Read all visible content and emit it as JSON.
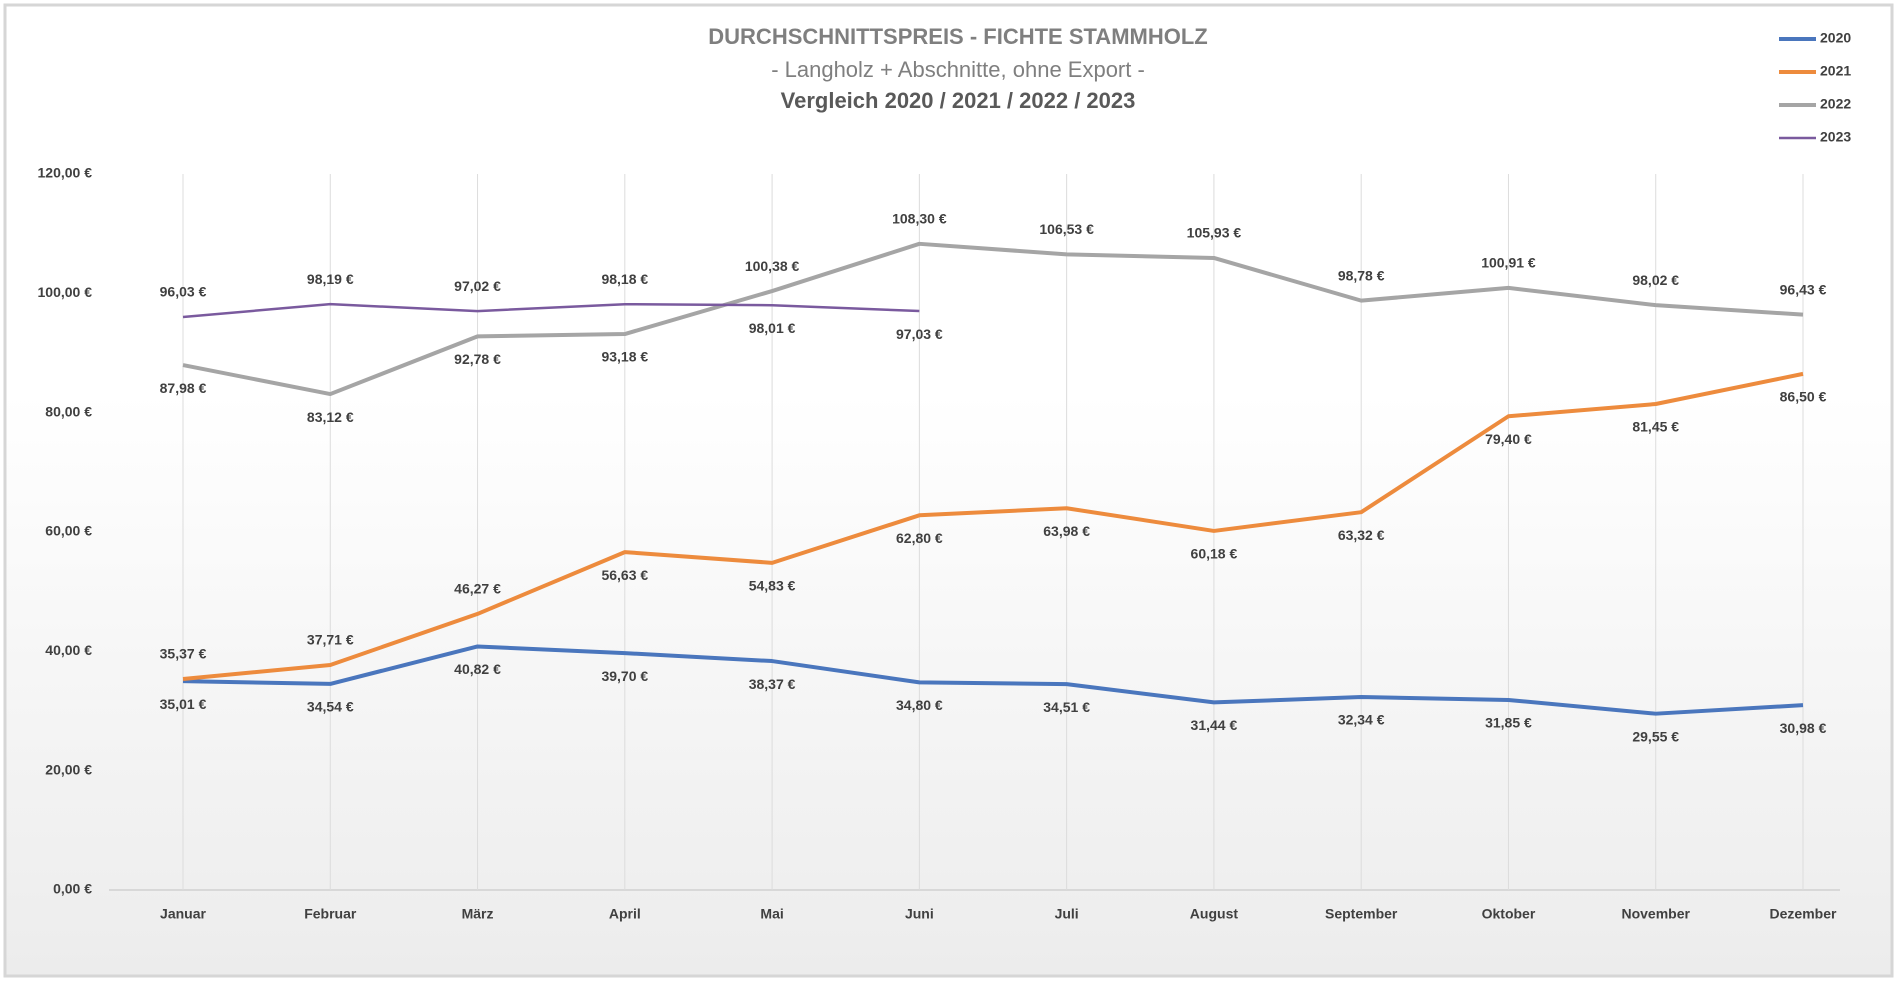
{
  "chart_data": {
    "type": "line",
    "title": "DURCHSCHNITTSPREIS - FICHTE STAMMHOLZ",
    "subtitle": "- Langholz + Abschnitte, ohne Export -",
    "subtitle2": "Vergleich 2020 / 2021 / 2022 / 2023",
    "categories": [
      "Januar",
      "Februar",
      "März",
      "April",
      "Mai",
      "Juni",
      "Juli",
      "August",
      "September",
      "Oktober",
      "November",
      "Dezember"
    ],
    "ylim": [
      0,
      120
    ],
    "yticks": [
      {
        "value": 0,
        "label": "0,00 €"
      },
      {
        "value": 20,
        "label": "20,00 €"
      },
      {
        "value": 40,
        "label": "40,00 €"
      },
      {
        "value": 60,
        "label": "60,00 €"
      },
      {
        "value": 80,
        "label": "80,00 €"
      },
      {
        "value": 100,
        "label": "100,00 €"
      },
      {
        "value": 120,
        "label": "120,00 €"
      }
    ],
    "grid": true,
    "legend": "top-right",
    "series": [
      {
        "name": "2020",
        "color": "#4a76bd",
        "values": [
          35.01,
          34.54,
          40.82,
          39.7,
          38.37,
          34.8,
          34.51,
          31.44,
          32.34,
          31.85,
          29.55,
          30.98
        ],
        "value_labels": [
          "35,01 €",
          "34,54 €",
          "40,82 €",
          "39,70 €",
          "38,37 €",
          "34,80 €",
          "34,51 €",
          "31,44 €",
          "32,34 €",
          "31,85 €",
          "29,55 €",
          "30,98 €"
        ]
      },
      {
        "name": "2021",
        "color": "#ed8b3d",
        "values": [
          35.37,
          37.71,
          46.27,
          56.63,
          54.83,
          62.8,
          63.98,
          60.18,
          63.32,
          79.4,
          81.45,
          86.5
        ],
        "value_labels": [
          "35,37 €",
          "37,71 €",
          "46,27 €",
          "56,63 €",
          "54,83 €",
          "62,80 €",
          "63,98 €",
          "60,18 €",
          "63,32 €",
          "79,40 €",
          "81,45 €",
          "86,50 €"
        ]
      },
      {
        "name": "2022",
        "color": "#a5a5a5",
        "values": [
          87.98,
          83.12,
          92.78,
          93.18,
          100.38,
          108.3,
          106.53,
          105.93,
          98.78,
          100.91,
          98.02,
          96.43
        ],
        "value_labels": [
          "87,98 €",
          "83,12 €",
          "92,78 €",
          "93,18 €",
          "100,38 €",
          "108,30 €",
          "106,53 €",
          "105,93 €",
          "98,78 €",
          "100,91 €",
          "98,02 €",
          "96,43 €"
        ]
      },
      {
        "name": "2023",
        "color": "#7a5a9e",
        "values": [
          96.03,
          98.19,
          97.02,
          98.18,
          98.01,
          97.03,
          null,
          null,
          null,
          null,
          null,
          null
        ],
        "value_labels": [
          "96,03 €",
          "98,19 €",
          "97,02 €",
          "98,18 €",
          "98,01 €",
          "97,03 €",
          null,
          null,
          null,
          null,
          null,
          null
        ]
      }
    ]
  }
}
